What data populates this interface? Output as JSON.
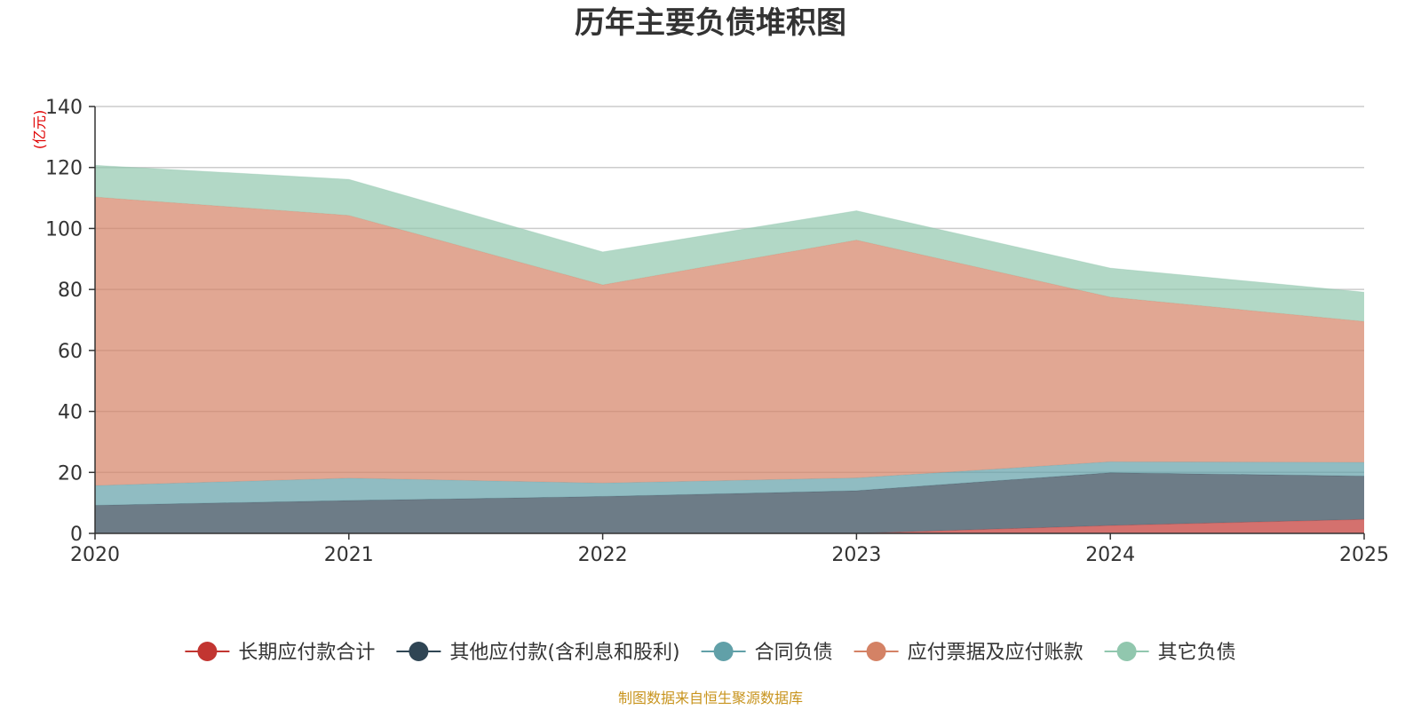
{
  "chart_data": {
    "type": "area",
    "stacked": true,
    "title": "历年主要负债堆积图",
    "unit_label": "(亿元)",
    "categories": [
      "2020",
      "2021",
      "2022",
      "2023",
      "2024",
      "2025"
    ],
    "ylim": [
      0,
      140
    ],
    "yticks": [
      0,
      20,
      40,
      60,
      80,
      100,
      120,
      140
    ],
    "grid": true,
    "legend_position": "bottom",
    "series": [
      {
        "name": "长期应付款合计",
        "color": "#c23531",
        "values": [
          0,
          0,
          0,
          0,
          2.6,
          4.6
        ]
      },
      {
        "name": "其他应付款(含利息和股利)",
        "color": "#2f4554",
        "values": [
          9.2,
          10.8,
          12.1,
          14.0,
          17.3,
          14.2
        ]
      },
      {
        "name": "合同负债",
        "color": "#61a0a8",
        "values": [
          6.5,
          7.3,
          4.4,
          4.2,
          3.6,
          4.5
        ]
      },
      {
        "name": "应付票据及应付账款",
        "color": "#d48265",
        "values": [
          94.6,
          86.2,
          65.0,
          78.0,
          54.0,
          46.2
        ]
      },
      {
        "name": "其它负债",
        "color": "#91c7ae",
        "values": [
          10.4,
          11.8,
          10.8,
          9.6,
          9.5,
          9.6
        ]
      }
    ],
    "source": "制图数据来自恒生聚源数据库"
  }
}
